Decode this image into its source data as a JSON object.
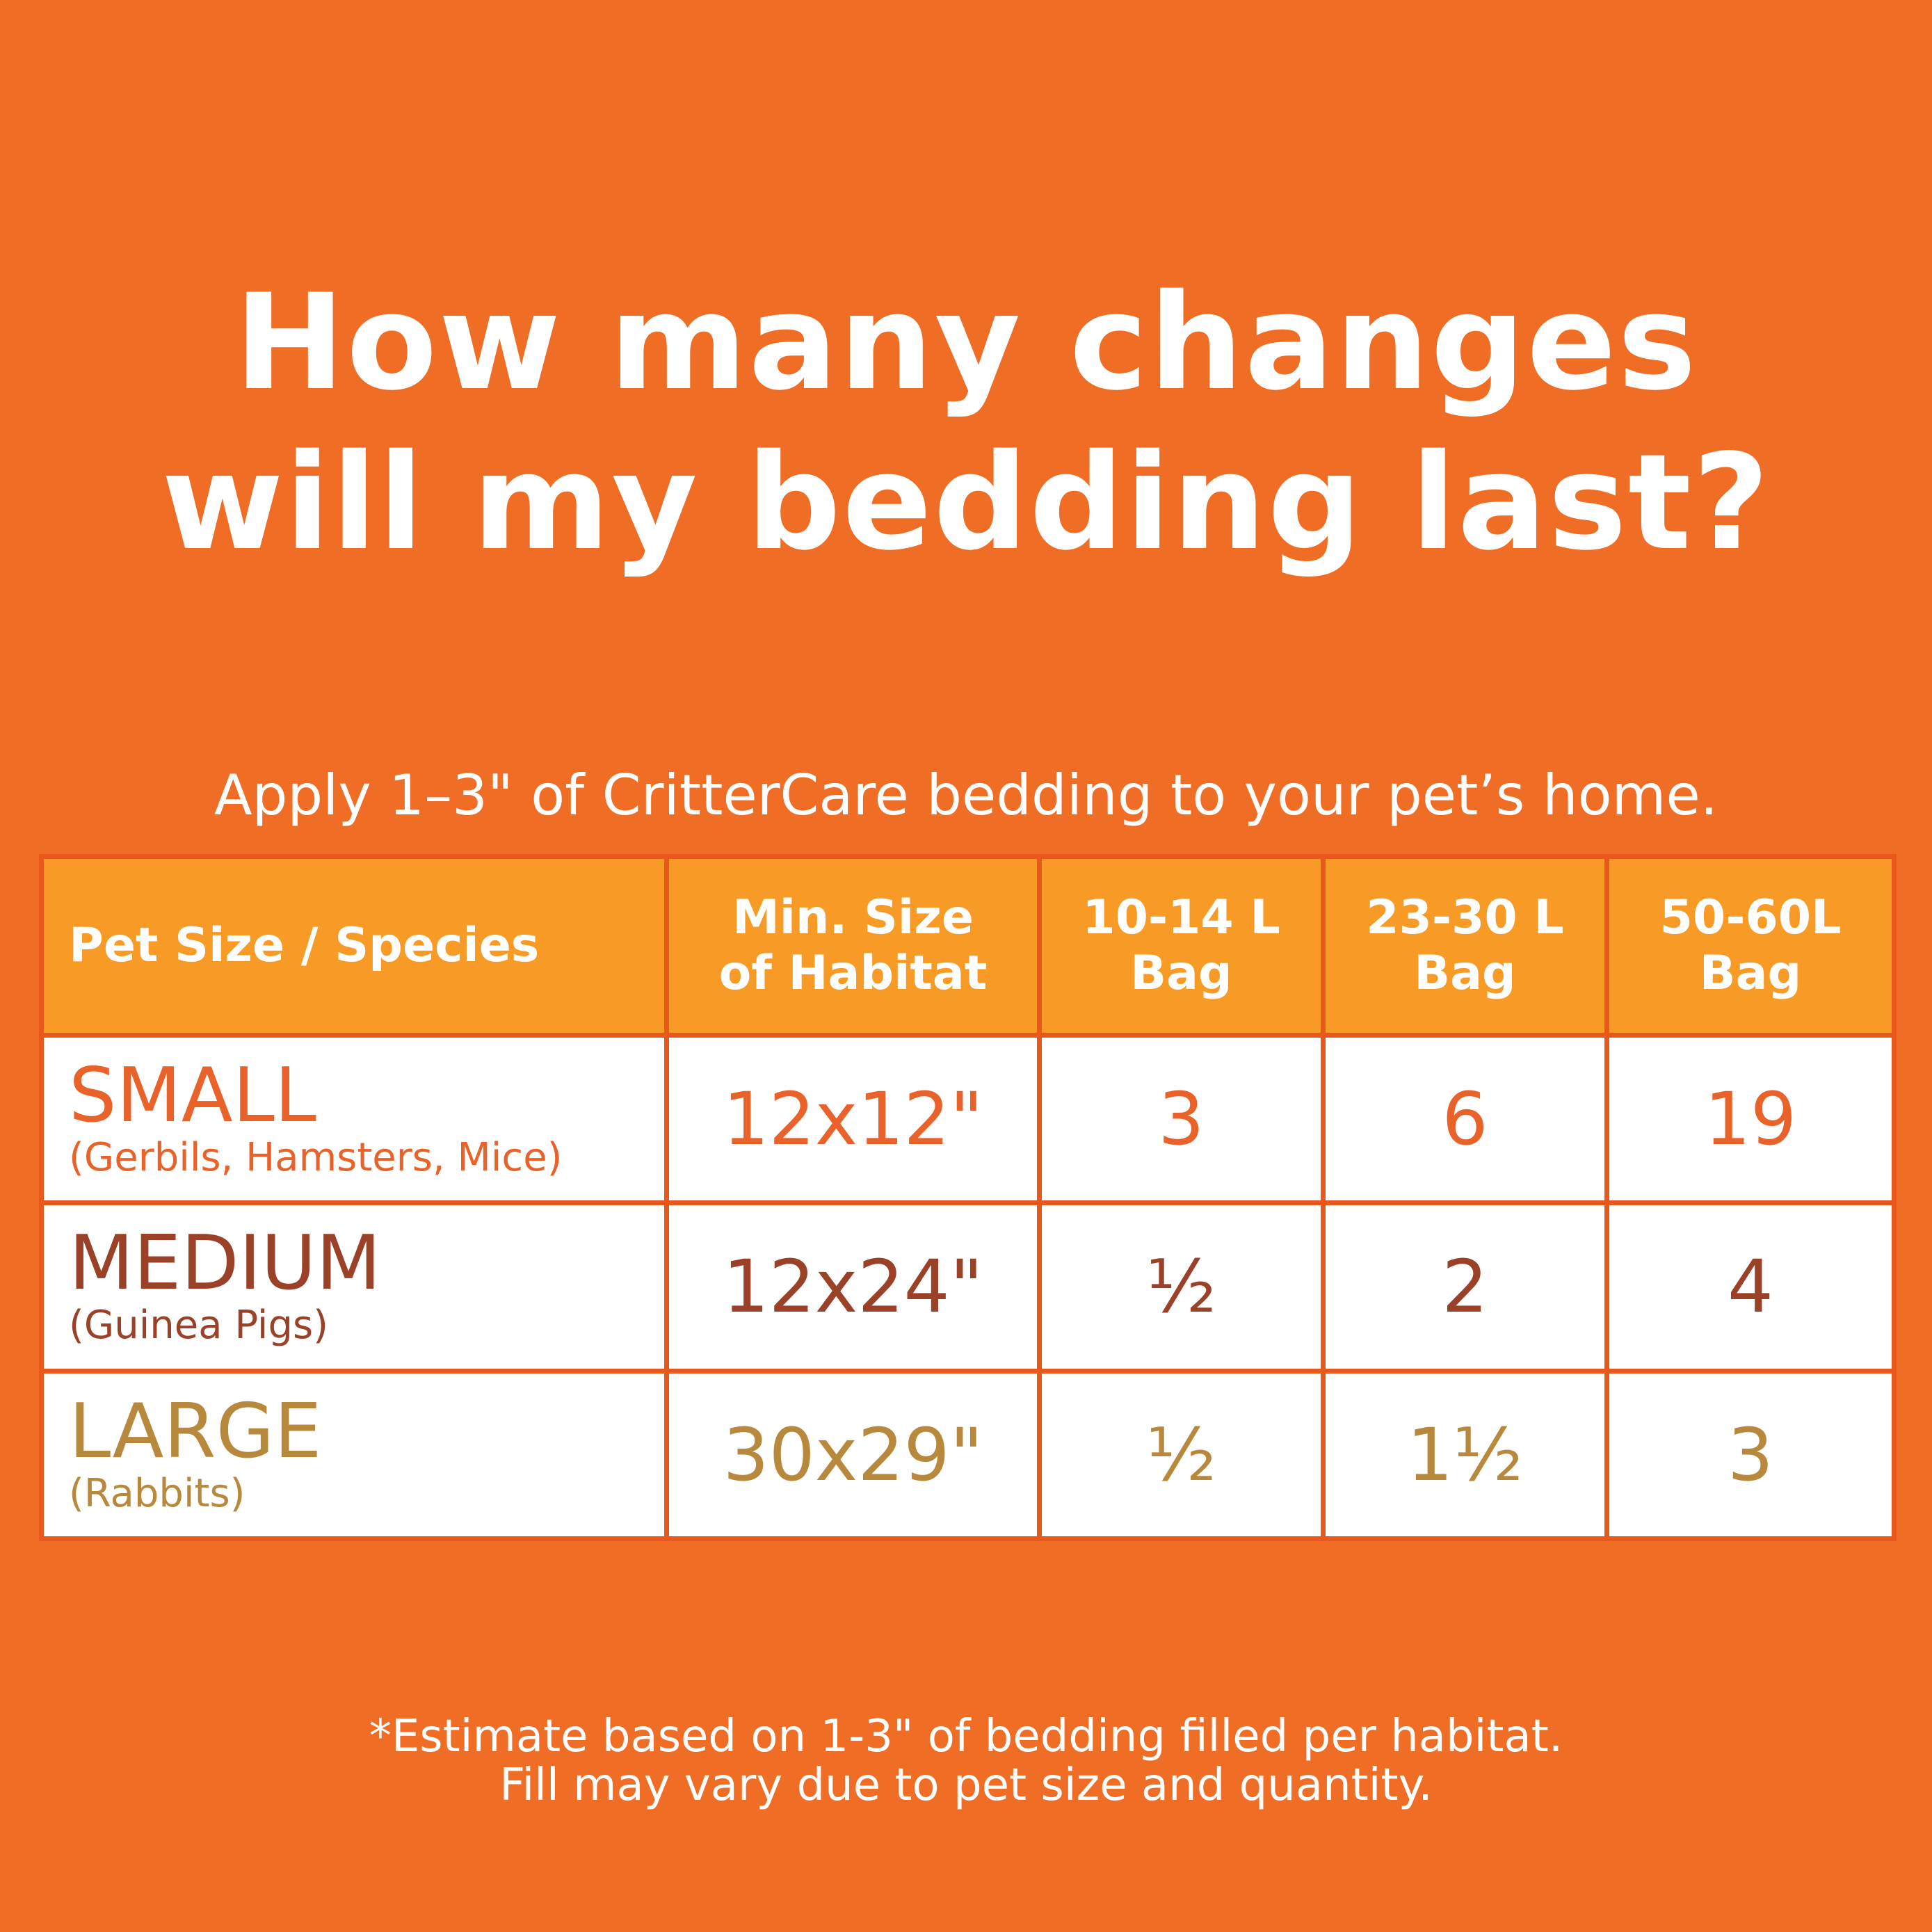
{
  "colors": {
    "background": "#f06d25",
    "header_fill": "#f89a26",
    "grid_lines": "#e8581c",
    "small": "#e8622a",
    "medium": "#9a4128",
    "large": "#b8893c"
  },
  "title": {
    "line1": "How many changes",
    "line2": "will my bedding last?"
  },
  "subtitle": "Apply 1–3\" of CritterCare bedding to your pet’s home.",
  "table": {
    "headers": [
      {
        "lines": [
          "Pet Size / Species"
        ]
      },
      {
        "lines": [
          "Min. Size",
          "of Habitat"
        ]
      },
      {
        "lines": [
          "10-14 L",
          "Bag"
        ]
      },
      {
        "lines": [
          "23-30 L",
          "Bag"
        ]
      },
      {
        "lines": [
          "50-60L",
          "Bag"
        ]
      }
    ],
    "rows": [
      {
        "size": "SMALL",
        "species": "(Gerbils, Hamsters, Mice)",
        "habitat": "12x12\"",
        "bag_10_14": "3",
        "bag_23_30": "6",
        "bag_50_60": "19"
      },
      {
        "size": "MEDIUM",
        "species": "(Guinea Pigs)",
        "habitat": "12x24\"",
        "bag_10_14": "½",
        "bag_23_30": "2",
        "bag_50_60": "4"
      },
      {
        "size": "LARGE",
        "species": "(Rabbits)",
        "habitat": "30x29\"",
        "bag_10_14": "½",
        "bag_23_30": "1½",
        "bag_50_60": "3"
      }
    ]
  },
  "footnote": {
    "line1": "*Estimate based on 1-3\" of bedding filled per habitat.",
    "line2": "Fill may vary due to pet size and quantity."
  }
}
